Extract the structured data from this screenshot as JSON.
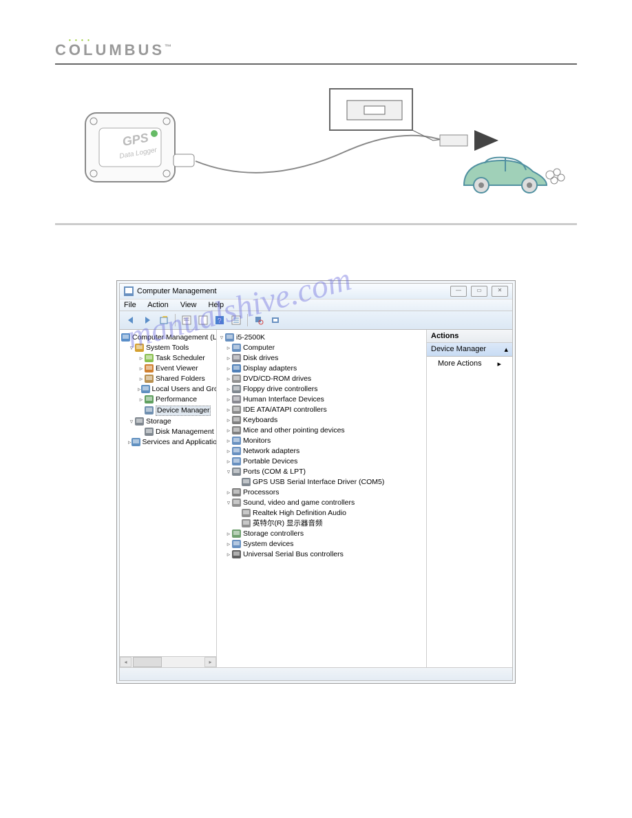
{
  "brand": {
    "name": "COLUMBUS",
    "tm": "™"
  },
  "window": {
    "title": "Computer Management",
    "menu": [
      "File",
      "Action",
      "View",
      "Help"
    ],
    "actions_title": "Actions",
    "actions_section": "Device Manager",
    "actions_more": "More Actions"
  },
  "left_tree": [
    {
      "level": 0,
      "exp": "",
      "icon": "#5a8ec8",
      "label": "Computer Management (Local"
    },
    {
      "level": 1,
      "exp": "▿",
      "icon": "#d4a030",
      "label": "System Tools"
    },
    {
      "level": 2,
      "exp": "▹",
      "icon": "#8ac050",
      "label": "Task Scheduler"
    },
    {
      "level": 2,
      "exp": "▹",
      "icon": "#d08030",
      "label": "Event Viewer"
    },
    {
      "level": 2,
      "exp": "▹",
      "icon": "#b89050",
      "label": "Shared Folders"
    },
    {
      "level": 2,
      "exp": "▹",
      "icon": "#6090c0",
      "label": "Local Users and Groups"
    },
    {
      "level": 2,
      "exp": "▹",
      "icon": "#60a060",
      "label": "Performance"
    },
    {
      "level": 2,
      "exp": "",
      "icon": "#7090b0",
      "label": "Device Manager",
      "selected": true
    },
    {
      "level": 1,
      "exp": "▿",
      "icon": "#808890",
      "label": "Storage"
    },
    {
      "level": 2,
      "exp": "",
      "icon": "#808890",
      "label": "Disk Management"
    },
    {
      "level": 1,
      "exp": "▹",
      "icon": "#6090c0",
      "label": "Services and Applications"
    }
  ],
  "mid_tree": [
    {
      "level": 0,
      "exp": "▿",
      "icon": "#6890c0",
      "label": "i5-2500K"
    },
    {
      "level": 1,
      "exp": "▹",
      "icon": "#6890c0",
      "label": "Computer"
    },
    {
      "level": 1,
      "exp": "▹",
      "icon": "#888890",
      "label": "Disk drives"
    },
    {
      "level": 1,
      "exp": "▹",
      "icon": "#5080b8",
      "label": "Display adapters"
    },
    {
      "level": 1,
      "exp": "▹",
      "icon": "#909090",
      "label": "DVD/CD-ROM drives"
    },
    {
      "level": 1,
      "exp": "▹",
      "icon": "#808890",
      "label": "Floppy drive controllers"
    },
    {
      "level": 1,
      "exp": "▹",
      "icon": "#888890",
      "label": "Human Interface Devices"
    },
    {
      "level": 1,
      "exp": "▹",
      "icon": "#888888",
      "label": "IDE ATA/ATAPI controllers"
    },
    {
      "level": 1,
      "exp": "▹",
      "icon": "#808080",
      "label": "Keyboards"
    },
    {
      "level": 1,
      "exp": "▹",
      "icon": "#808080",
      "label": "Mice and other pointing devices"
    },
    {
      "level": 1,
      "exp": "▹",
      "icon": "#6890c0",
      "label": "Monitors"
    },
    {
      "level": 1,
      "exp": "▹",
      "icon": "#6890c0",
      "label": "Network adapters"
    },
    {
      "level": 1,
      "exp": "▹",
      "icon": "#6890c0",
      "label": "Portable Devices"
    },
    {
      "level": 1,
      "exp": "▿",
      "icon": "#808890",
      "label": "Ports (COM & LPT)"
    },
    {
      "level": 2,
      "exp": "",
      "icon": "#808890",
      "label": "GPS USB Serial Interface Driver (COM5)"
    },
    {
      "level": 1,
      "exp": "▹",
      "icon": "#808080",
      "label": "Processors"
    },
    {
      "level": 1,
      "exp": "▿",
      "icon": "#909090",
      "label": "Sound, video and game controllers"
    },
    {
      "level": 2,
      "exp": "",
      "icon": "#909090",
      "label": "Realtek High Definition Audio"
    },
    {
      "level": 2,
      "exp": "",
      "icon": "#909090",
      "label": "英特尔(R) 显示器音频"
    },
    {
      "level": 1,
      "exp": "▹",
      "icon": "#70a070",
      "label": "Storage controllers"
    },
    {
      "level": 1,
      "exp": "▹",
      "icon": "#6890c0",
      "label": "System devices"
    },
    {
      "level": 1,
      "exp": "▹",
      "icon": "#606060",
      "label": "Universal Serial Bus controllers"
    }
  ],
  "illustration": {
    "device_label_1": "GPS",
    "device_label_2": "Data Logger",
    "car_color": "#a0d0b8",
    "car_stroke": "#5090a0"
  },
  "watermark_text": "manualshive.com"
}
